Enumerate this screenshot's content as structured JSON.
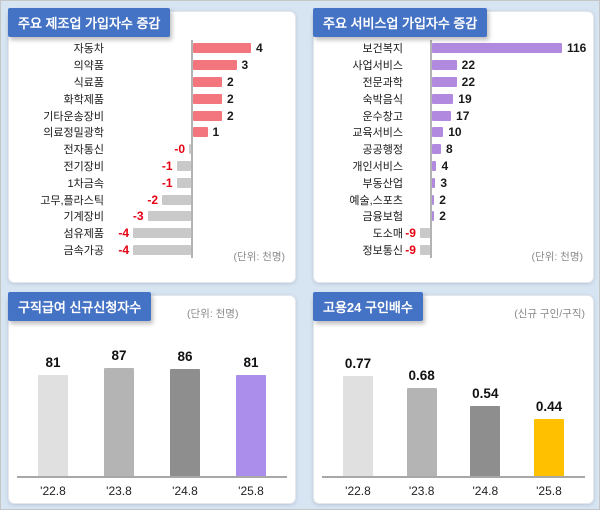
{
  "page": {
    "background": "#d7e4f2",
    "ribbon_color": "#4472c4"
  },
  "chart_data": [
    {
      "id": "manufacturing",
      "type": "bar",
      "orientation": "horizontal",
      "title": "주요 제조업 가입자수 증감",
      "unit_label": "(단위: 천명)",
      "categories": [
        "자동차",
        "의약품",
        "식료품",
        "화학제품",
        "기타운송장비",
        "의료정밀광학",
        "전자통신",
        "전기장비",
        "1차금속",
        "고무,플라스틱",
        "기계장비",
        "섬유제품",
        "금속가공"
      ],
      "values": [
        4,
        3,
        2,
        2,
        2,
        1,
        0,
        -1,
        -1,
        -2,
        -3,
        -4,
        -4
      ],
      "value_labels": [
        "4",
        "3",
        "2",
        "2",
        "2",
        "1",
        "-0",
        "-1",
        "-1",
        "-2",
        "-3",
        "-4",
        "-4"
      ],
      "positive_color": "#f3757e",
      "negative_color": "#c9c9c9",
      "negative_value_color": "#e60012",
      "legend": "none",
      "grid": false
    },
    {
      "id": "services",
      "type": "bar",
      "orientation": "horizontal",
      "title": "주요 서비스업 가입자수 증감",
      "unit_label": "(단위: 천명)",
      "categories": [
        "보건복지",
        "사업서비스",
        "전문과학",
        "숙박음식",
        "운수창고",
        "교육서비스",
        "공공행정",
        "개인서비스",
        "부동산업",
        "예술,스포츠",
        "금융보험",
        "도소매",
        "정보통신"
      ],
      "values": [
        116,
        22,
        22,
        19,
        17,
        10,
        8,
        4,
        3,
        2,
        2,
        -9,
        -9
      ],
      "value_labels": [
        "116",
        "22",
        "22",
        "19",
        "17",
        "10",
        "8",
        "4",
        "3",
        "2",
        "2",
        "-9",
        "-9"
      ],
      "positive_color": "#b18ae0",
      "negative_color": "#c9c9c9",
      "negative_value_color": "#e60012",
      "legend": "none",
      "grid": false
    },
    {
      "id": "jobless-claims",
      "type": "bar",
      "orientation": "vertical",
      "title": "구직급여 신규신청자수",
      "unit_label": "(단위: 천명)",
      "categories": [
        "'22.8",
        "'23.8",
        "'24.8",
        "'25.8"
      ],
      "values": [
        81,
        87,
        86,
        81
      ],
      "value_labels": [
        "81",
        "87",
        "86",
        "81"
      ],
      "bar_colors": [
        "#e0e0e0",
        "#b4b4b4",
        "#8e8e8e",
        "#ab8eeb"
      ],
      "legend": "none",
      "grid": false
    },
    {
      "id": "job-openings-ratio",
      "type": "bar",
      "orientation": "vertical",
      "title": "고용24 구인배수",
      "unit_label": "(신규 구인/구직)",
      "categories": [
        "'22.8",
        "'23.8",
        "'24.8",
        "'25.8"
      ],
      "values": [
        0.77,
        0.68,
        0.54,
        0.44
      ],
      "value_labels": [
        "0.77",
        "0.68",
        "0.54",
        "0.44"
      ],
      "bar_colors": [
        "#e0e0e0",
        "#b4b4b4",
        "#8e8e8e",
        "#ffc000"
      ],
      "legend": "none",
      "grid": false
    }
  ]
}
